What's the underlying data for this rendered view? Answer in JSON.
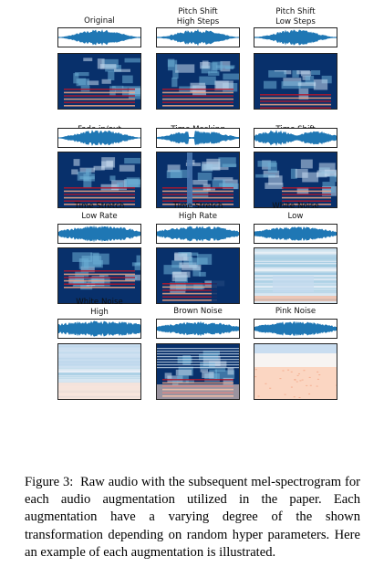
{
  "figure": {
    "panels": [
      {
        "title": "Original",
        "spectrogram_style": "deep",
        "waveform_style": "normal"
      },
      {
        "title": "Pitch Shift\nHigh Steps",
        "spectrogram_style": "deep",
        "waveform_style": "normal"
      },
      {
        "title": "Pitch Shift\nLow Steps",
        "spectrogram_style": "deep-low",
        "waveform_style": "normal"
      },
      {
        "title": "Fade in/out",
        "spectrogram_style": "deep",
        "waveform_style": "fade"
      },
      {
        "title": "Time Masking",
        "spectrogram_style": "masked",
        "waveform_style": "masked"
      },
      {
        "title": "Time Shift",
        "spectrogram_style": "shifted",
        "waveform_style": "shifted"
      },
      {
        "title": "Time Stretch\nLow Rate",
        "spectrogram_style": "stretch-low",
        "waveform_style": "dense"
      },
      {
        "title": "Time Stretch\nHigh Rate",
        "spectrogram_style": "stretch-high",
        "waveform_style": "dense"
      },
      {
        "title": "White Noise\nLow",
        "spectrogram_style": "noise-light",
        "waveform_style": "noisy"
      },
      {
        "title": "White Noise\nHigh",
        "spectrogram_style": "noise-heavy",
        "waveform_style": "noisy-full"
      },
      {
        "title": "Brown Noise",
        "spectrogram_style": "brown",
        "waveform_style": "noisy"
      },
      {
        "title": "Pink Noise",
        "spectrogram_style": "pink",
        "waveform_style": "noisy"
      }
    ],
    "colors": {
      "waveform": "#1f77b4",
      "spec_dark": "#08306b",
      "spec_mid": "#6baed6",
      "spec_light": "#f7f4f2",
      "spec_red": "#b2182b"
    }
  },
  "caption": {
    "label": "Figure 3:",
    "text": "Raw audio with the subsequent mel-spectrogram for each audio augmentation utilized in the paper. Each augmentation have a varying degree of the shown transformation depending on random hyper parameters. Here an example of each augmentation is illustrated."
  }
}
